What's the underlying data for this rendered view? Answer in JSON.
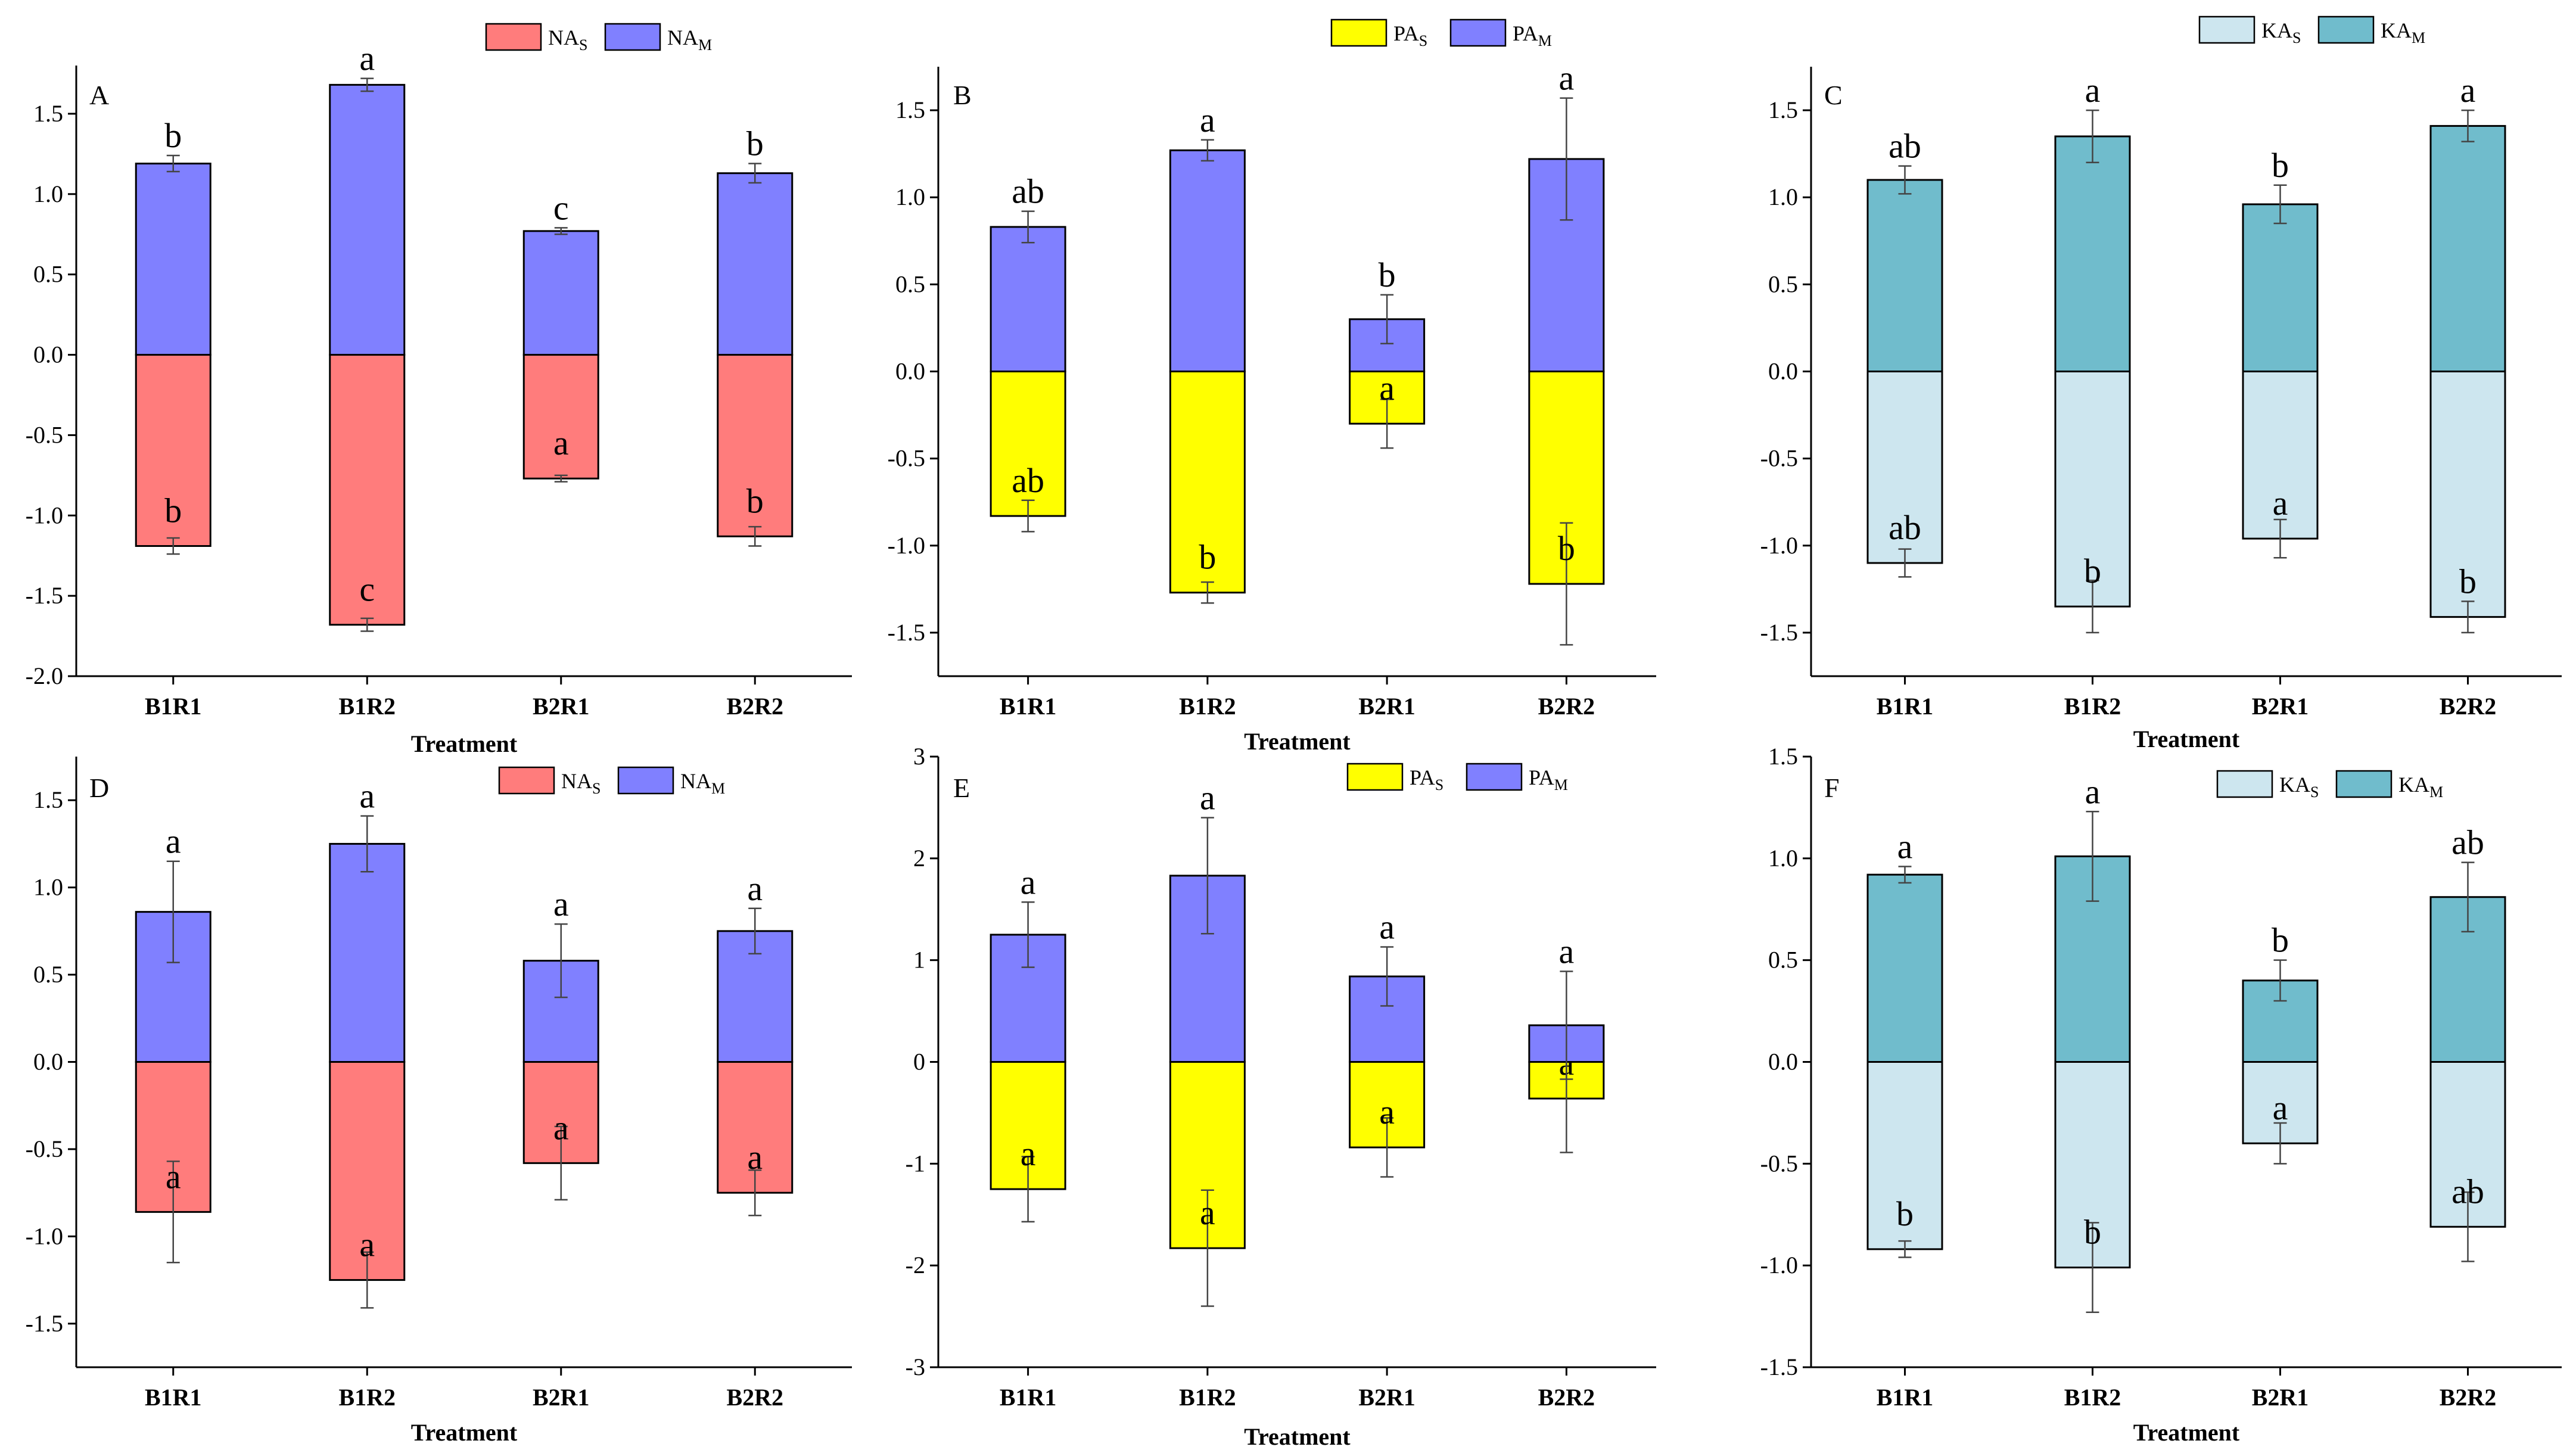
{
  "figure": {
    "background": "#ffffff"
  },
  "chart_data": [
    {
      "panel": "A",
      "type": "bar",
      "stacked": "diverging",
      "categories": [
        "B1R1",
        "B1R2",
        "B2R1",
        "B2R2"
      ],
      "xlabel": "Treatment",
      "ylabel": "",
      "ylim": [
        -2.0,
        1.8
      ],
      "yticks": [
        -2.0,
        -1.5,
        -1.0,
        -0.5,
        0.0,
        0.5,
        1.0,
        1.5
      ],
      "legend": [
        {
          "base": "NA",
          "sub": "S"
        },
        {
          "base": "NA",
          "sub": "M"
        }
      ],
      "legend_position": "top-center",
      "series": [
        {
          "name": "NAS",
          "color": "#ff7c7c",
          "values": [
            -1.19,
            -1.68,
            -0.77,
            -1.13
          ],
          "errors": [
            0.05,
            0.04,
            0.02,
            0.06
          ],
          "letters": [
            "b",
            "c",
            "a",
            "b"
          ]
        },
        {
          "name": "NAM",
          "color": "#8080ff",
          "values": [
            1.19,
            1.68,
            0.77,
            1.13
          ],
          "errors": [
            0.05,
            0.04,
            0.02,
            0.06
          ],
          "letters": [
            "b",
            "a",
            "c",
            "b"
          ]
        }
      ]
    },
    {
      "panel": "B",
      "type": "bar",
      "stacked": "diverging",
      "categories": [
        "B1R1",
        "B1R2",
        "B2R1",
        "B2R2"
      ],
      "xlabel": "Treatment",
      "ylabel": "",
      "ylim": [
        -1.75,
        1.75
      ],
      "yticks": [
        -1.5,
        -1.0,
        -0.5,
        0.0,
        0.5,
        1.0,
        1.5
      ],
      "legend": [
        {
          "base": "PA",
          "sub": "S"
        },
        {
          "base": "PA",
          "sub": "M"
        }
      ],
      "legend_position": "top-center",
      "series": [
        {
          "name": "PAS",
          "color": "#ffff00",
          "values": [
            -0.83,
            -1.27,
            -0.3,
            -1.22
          ],
          "errors": [
            0.09,
            0.06,
            0.14,
            0.35
          ],
          "letters": [
            "ab",
            "b",
            "a",
            "b"
          ]
        },
        {
          "name": "PAM",
          "color": "#8080ff",
          "values": [
            0.83,
            1.27,
            0.3,
            1.22
          ],
          "errors": [
            0.09,
            0.06,
            0.14,
            0.35
          ],
          "letters": [
            "ab",
            "a",
            "b",
            "a"
          ]
        }
      ]
    },
    {
      "panel": "C",
      "type": "bar",
      "stacked": "diverging",
      "categories": [
        "B1R1",
        "B1R2",
        "B2R1",
        "B2R2"
      ],
      "xlabel": "Treatment",
      "ylabel": "",
      "ylim": [
        -1.75,
        1.75
      ],
      "yticks": [
        -1.5,
        -1.0,
        -0.5,
        0.0,
        0.5,
        1.0,
        1.5
      ],
      "legend": [
        {
          "base": "KA",
          "sub": "S"
        },
        {
          "base": "KA",
          "sub": "M"
        }
      ],
      "legend_position": "top-center",
      "series": [
        {
          "name": "KAS",
          "color": "#cde6ef",
          "values": [
            -1.1,
            -1.35,
            -0.96,
            -1.41
          ],
          "errors": [
            0.08,
            0.15,
            0.11,
            0.09
          ],
          "letters": [
            "ab",
            "b",
            "a",
            "b"
          ]
        },
        {
          "name": "KAM",
          "color": "#70bccc",
          "values": [
            1.1,
            1.35,
            0.96,
            1.41
          ],
          "errors": [
            0.08,
            0.15,
            0.11,
            0.09
          ],
          "letters": [
            "ab",
            "a",
            "b",
            "a"
          ]
        }
      ]
    },
    {
      "panel": "D",
      "type": "bar",
      "stacked": "diverging",
      "categories": [
        "B1R1",
        "B1R2",
        "B2R1",
        "B2R2"
      ],
      "xlabel": "Treatment",
      "ylabel": "",
      "ylim": [
        -1.75,
        1.75
      ],
      "yticks": [
        -1.5,
        -1.0,
        -0.5,
        0.0,
        0.5,
        1.0,
        1.5
      ],
      "legend": [
        {
          "base": "NA",
          "sub": "S"
        },
        {
          "base": "NA",
          "sub": "M"
        }
      ],
      "legend_position": "top-center",
      "series": [
        {
          "name": "NAS",
          "color": "#ff7c7c",
          "values": [
            -0.86,
            -1.25,
            -0.58,
            -0.75
          ],
          "errors": [
            0.29,
            0.16,
            0.21,
            0.13
          ],
          "letters": [
            "a",
            "a",
            "a",
            "a"
          ]
        },
        {
          "name": "NAM",
          "color": "#8080ff",
          "values": [
            0.86,
            1.25,
            0.58,
            0.75
          ],
          "errors": [
            0.29,
            0.16,
            0.21,
            0.13
          ],
          "letters": [
            "a",
            "a",
            "a",
            "a"
          ]
        }
      ]
    },
    {
      "panel": "E",
      "type": "bar",
      "stacked": "diverging",
      "categories": [
        "B1R1",
        "B1R2",
        "B2R1",
        "B2R2"
      ],
      "xlabel": "Treatment",
      "ylabel": "",
      "ylim": [
        -3,
        3
      ],
      "yticks": [
        -3,
        -2,
        -1,
        0,
        1,
        2,
        3
      ],
      "legend": [
        {
          "base": "PA",
          "sub": "S"
        },
        {
          "base": "PA",
          "sub": "M"
        }
      ],
      "legend_position": "top-center",
      "series": [
        {
          "name": "PAS",
          "color": "#ffff00",
          "values": [
            -1.25,
            -1.83,
            -0.84,
            -0.36
          ],
          "errors": [
            0.32,
            0.57,
            0.29,
            0.53
          ],
          "letters": [
            "a",
            "a",
            "a",
            "a"
          ]
        },
        {
          "name": "PAM",
          "color": "#8080ff",
          "values": [
            1.25,
            1.83,
            0.84,
            0.36
          ],
          "errors": [
            0.32,
            0.57,
            0.29,
            0.53
          ],
          "letters": [
            "a",
            "a",
            "a",
            "a"
          ]
        }
      ]
    },
    {
      "panel": "F",
      "type": "bar",
      "stacked": "diverging",
      "categories": [
        "B1R1",
        "B1R2",
        "B2R1",
        "B2R2"
      ],
      "xlabel": "Treatment",
      "ylabel": "",
      "ylim": [
        -1.5,
        1.5
      ],
      "yticks": [
        -1.5,
        -1.0,
        -0.5,
        0.0,
        0.5,
        1.0,
        1.5
      ],
      "legend": [
        {
          "base": "KA",
          "sub": "S"
        },
        {
          "base": "KA",
          "sub": "M"
        }
      ],
      "legend_position": "top-center",
      "series": [
        {
          "name": "KAS",
          "color": "#cde6ef",
          "values": [
            -0.92,
            -1.01,
            -0.4,
            -0.81
          ],
          "errors": [
            0.04,
            0.22,
            0.1,
            0.17
          ],
          "letters": [
            "b",
            "b",
            "a",
            "ab"
          ]
        },
        {
          "name": "KAM",
          "color": "#70bccc",
          "values": [
            0.92,
            1.01,
            0.4,
            0.81
          ],
          "errors": [
            0.04,
            0.22,
            0.1,
            0.17
          ],
          "letters": [
            "a",
            "a",
            "b",
            "ab"
          ]
        }
      ]
    }
  ]
}
